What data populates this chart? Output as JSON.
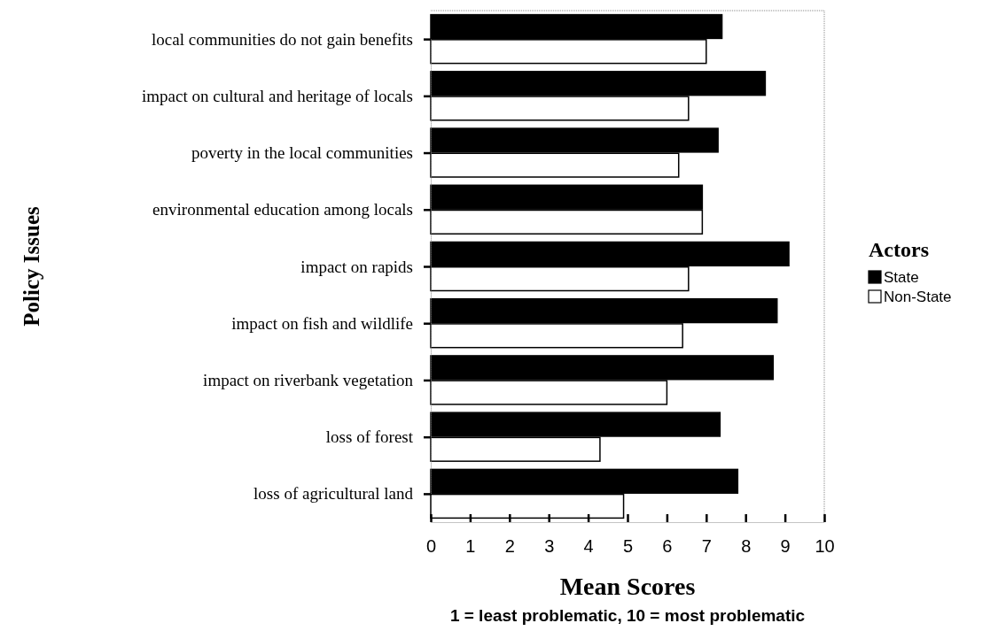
{
  "chart_data": {
    "type": "bar",
    "orientation": "horizontal",
    "xlabel": "Mean Scores",
    "ylabel": "Policy Issues",
    "legend_title": "Actors",
    "legend": "right",
    "annotations": [
      "1 = least problematic, 10 = most problematic"
    ],
    "categories": [
      "local communities do not gain benefits",
      "impact on cultural and heritage of locals",
      "poverty in the local communities",
      "environmental education among locals",
      "impact on rapids",
      "impact on fish and wildlife",
      "impact on riverbank vegetation",
      "loss of forest",
      "loss of agricultural land"
    ],
    "series": [
      {
        "name": "State",
        "color": "#000000",
        "values": [
          7.4,
          8.5,
          7.3,
          6.9,
          9.1,
          8.8,
          8.7,
          7.35,
          7.8
        ]
      },
      {
        "name": "Non-State",
        "color": "#ffffff",
        "values": [
          7.0,
          6.55,
          6.3,
          6.9,
          6.55,
          6.4,
          6.0,
          4.3,
          4.9
        ]
      }
    ],
    "xlim": [
      0,
      10
    ],
    "xticks": [
      0,
      1,
      2,
      3,
      4,
      5,
      6,
      7,
      8,
      9,
      10
    ],
    "grid": false
  }
}
